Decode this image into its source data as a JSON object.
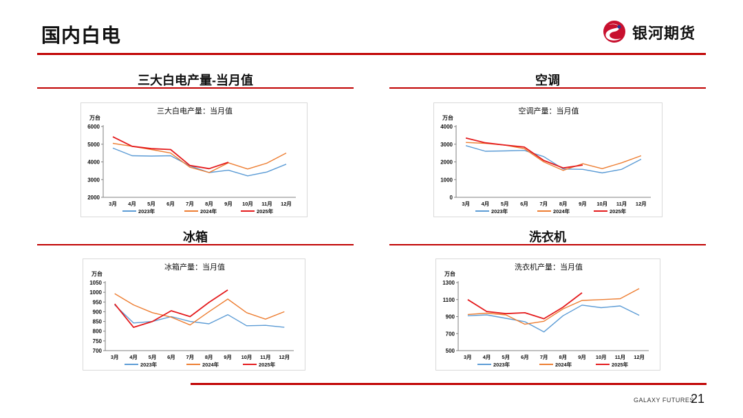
{
  "page": {
    "title": "国内白电",
    "brand_name": "银河期货",
    "footer_brand": "GALAXY FUTURES",
    "page_number": "21"
  },
  "sections": [
    {
      "heading": "三大白电产量-当月值"
    },
    {
      "heading": "空调"
    },
    {
      "heading": "冰箱"
    },
    {
      "heading": "洗衣机"
    }
  ],
  "chart_data": [
    {
      "type": "line",
      "title": "三大白电产量：当月值",
      "ylabel": "万台",
      "categories": [
        "3月",
        "4月",
        "5月",
        "6月",
        "7月",
        "8月",
        "9月",
        "10月",
        "11月",
        "12月"
      ],
      "ylim": [
        2000,
        6000
      ],
      "yticks": [
        2000,
        3000,
        4000,
        5000,
        6000
      ],
      "grid": false,
      "legend_position": "bottom",
      "series": [
        {
          "name": "2023年",
          "color": "#5b9bd5",
          "values": [
            4780,
            4350,
            4330,
            4350,
            3780,
            3400,
            3530,
            3210,
            3430,
            3870
          ]
        },
        {
          "name": "2024年",
          "color": "#ed7d31",
          "values": [
            5050,
            4880,
            4700,
            4500,
            3700,
            3400,
            3950,
            3600,
            3930,
            4500
          ]
        },
        {
          "name": "2025年",
          "color": "#e41a1c",
          "values": [
            5420,
            4880,
            4750,
            4700,
            3800,
            3620,
            3980,
            null,
            null,
            null
          ]
        }
      ]
    },
    {
      "type": "line",
      "title": "空调产量：当月值",
      "ylabel": "万台",
      "categories": [
        "3月",
        "4月",
        "5月",
        "6月",
        "7月",
        "8月",
        "9月",
        "10月",
        "11月",
        "12月"
      ],
      "ylim": [
        0,
        4000
      ],
      "yticks": [
        0,
        1000,
        2000,
        3000,
        4000
      ],
      "grid": false,
      "legend_position": "bottom",
      "series": [
        {
          "name": "2023年",
          "color": "#5b9bd5",
          "values": [
            2920,
            2600,
            2620,
            2650,
            2300,
            1600,
            1580,
            1380,
            1580,
            2150
          ]
        },
        {
          "name": "2024年",
          "color": "#ed7d31",
          "values": [
            3100,
            3050,
            2950,
            2750,
            2000,
            1520,
            1900,
            1620,
            1950,
            2350
          ]
        },
        {
          "name": "2025年",
          "color": "#e41a1c",
          "values": [
            3350,
            3080,
            2950,
            2840,
            2080,
            1660,
            1820,
            null,
            null,
            null
          ]
        }
      ]
    },
    {
      "type": "line",
      "title": "冰箱产量：当月值",
      "ylabel": "万台",
      "categories": [
        "3月",
        "4月",
        "5月",
        "6月",
        "7月",
        "8月",
        "9月",
        "10月",
        "11月",
        "12月"
      ],
      "ylim": [
        700,
        1050
      ],
      "yticks": [
        700,
        750,
        800,
        850,
        900,
        950,
        1000,
        1050
      ],
      "grid": false,
      "legend_position": "bottom",
      "series": [
        {
          "name": "2023年",
          "color": "#5b9bd5",
          "values": [
            935,
            842,
            850,
            875,
            850,
            838,
            885,
            828,
            830,
            820
          ]
        },
        {
          "name": "2024年",
          "color": "#ed7d31",
          "values": [
            993,
            935,
            895,
            872,
            832,
            900,
            965,
            895,
            862,
            900
          ]
        },
        {
          "name": "2025年",
          "color": "#e41a1c",
          "values": [
            940,
            820,
            850,
            905,
            875,
            948,
            1012,
            null,
            null,
            null
          ]
        }
      ]
    },
    {
      "type": "line",
      "title": "洗衣机产量：当月值",
      "ylabel": "万台",
      "categories": [
        "3月",
        "4月",
        "5月",
        "6月",
        "7月",
        "8月",
        "9月",
        "10月",
        "11月",
        "12月"
      ],
      "ylim": [
        500,
        1300
      ],
      "yticks": [
        500,
        700,
        900,
        1100,
        1300
      ],
      "grid": false,
      "legend_position": "bottom",
      "series": [
        {
          "name": "2023年",
          "color": "#5b9bd5",
          "values": [
            910,
            920,
            880,
            840,
            720,
            910,
            1035,
            1005,
            1025,
            915
          ]
        },
        {
          "name": "2024年",
          "color": "#ed7d31",
          "values": [
            925,
            940,
            920,
            810,
            845,
            990,
            1090,
            1100,
            1110,
            1230
          ]
        },
        {
          "name": "2025年",
          "color": "#e41a1c",
          "values": [
            1100,
            960,
            935,
            945,
            875,
            1010,
            1180,
            null,
            null,
            null
          ]
        }
      ]
    }
  ]
}
